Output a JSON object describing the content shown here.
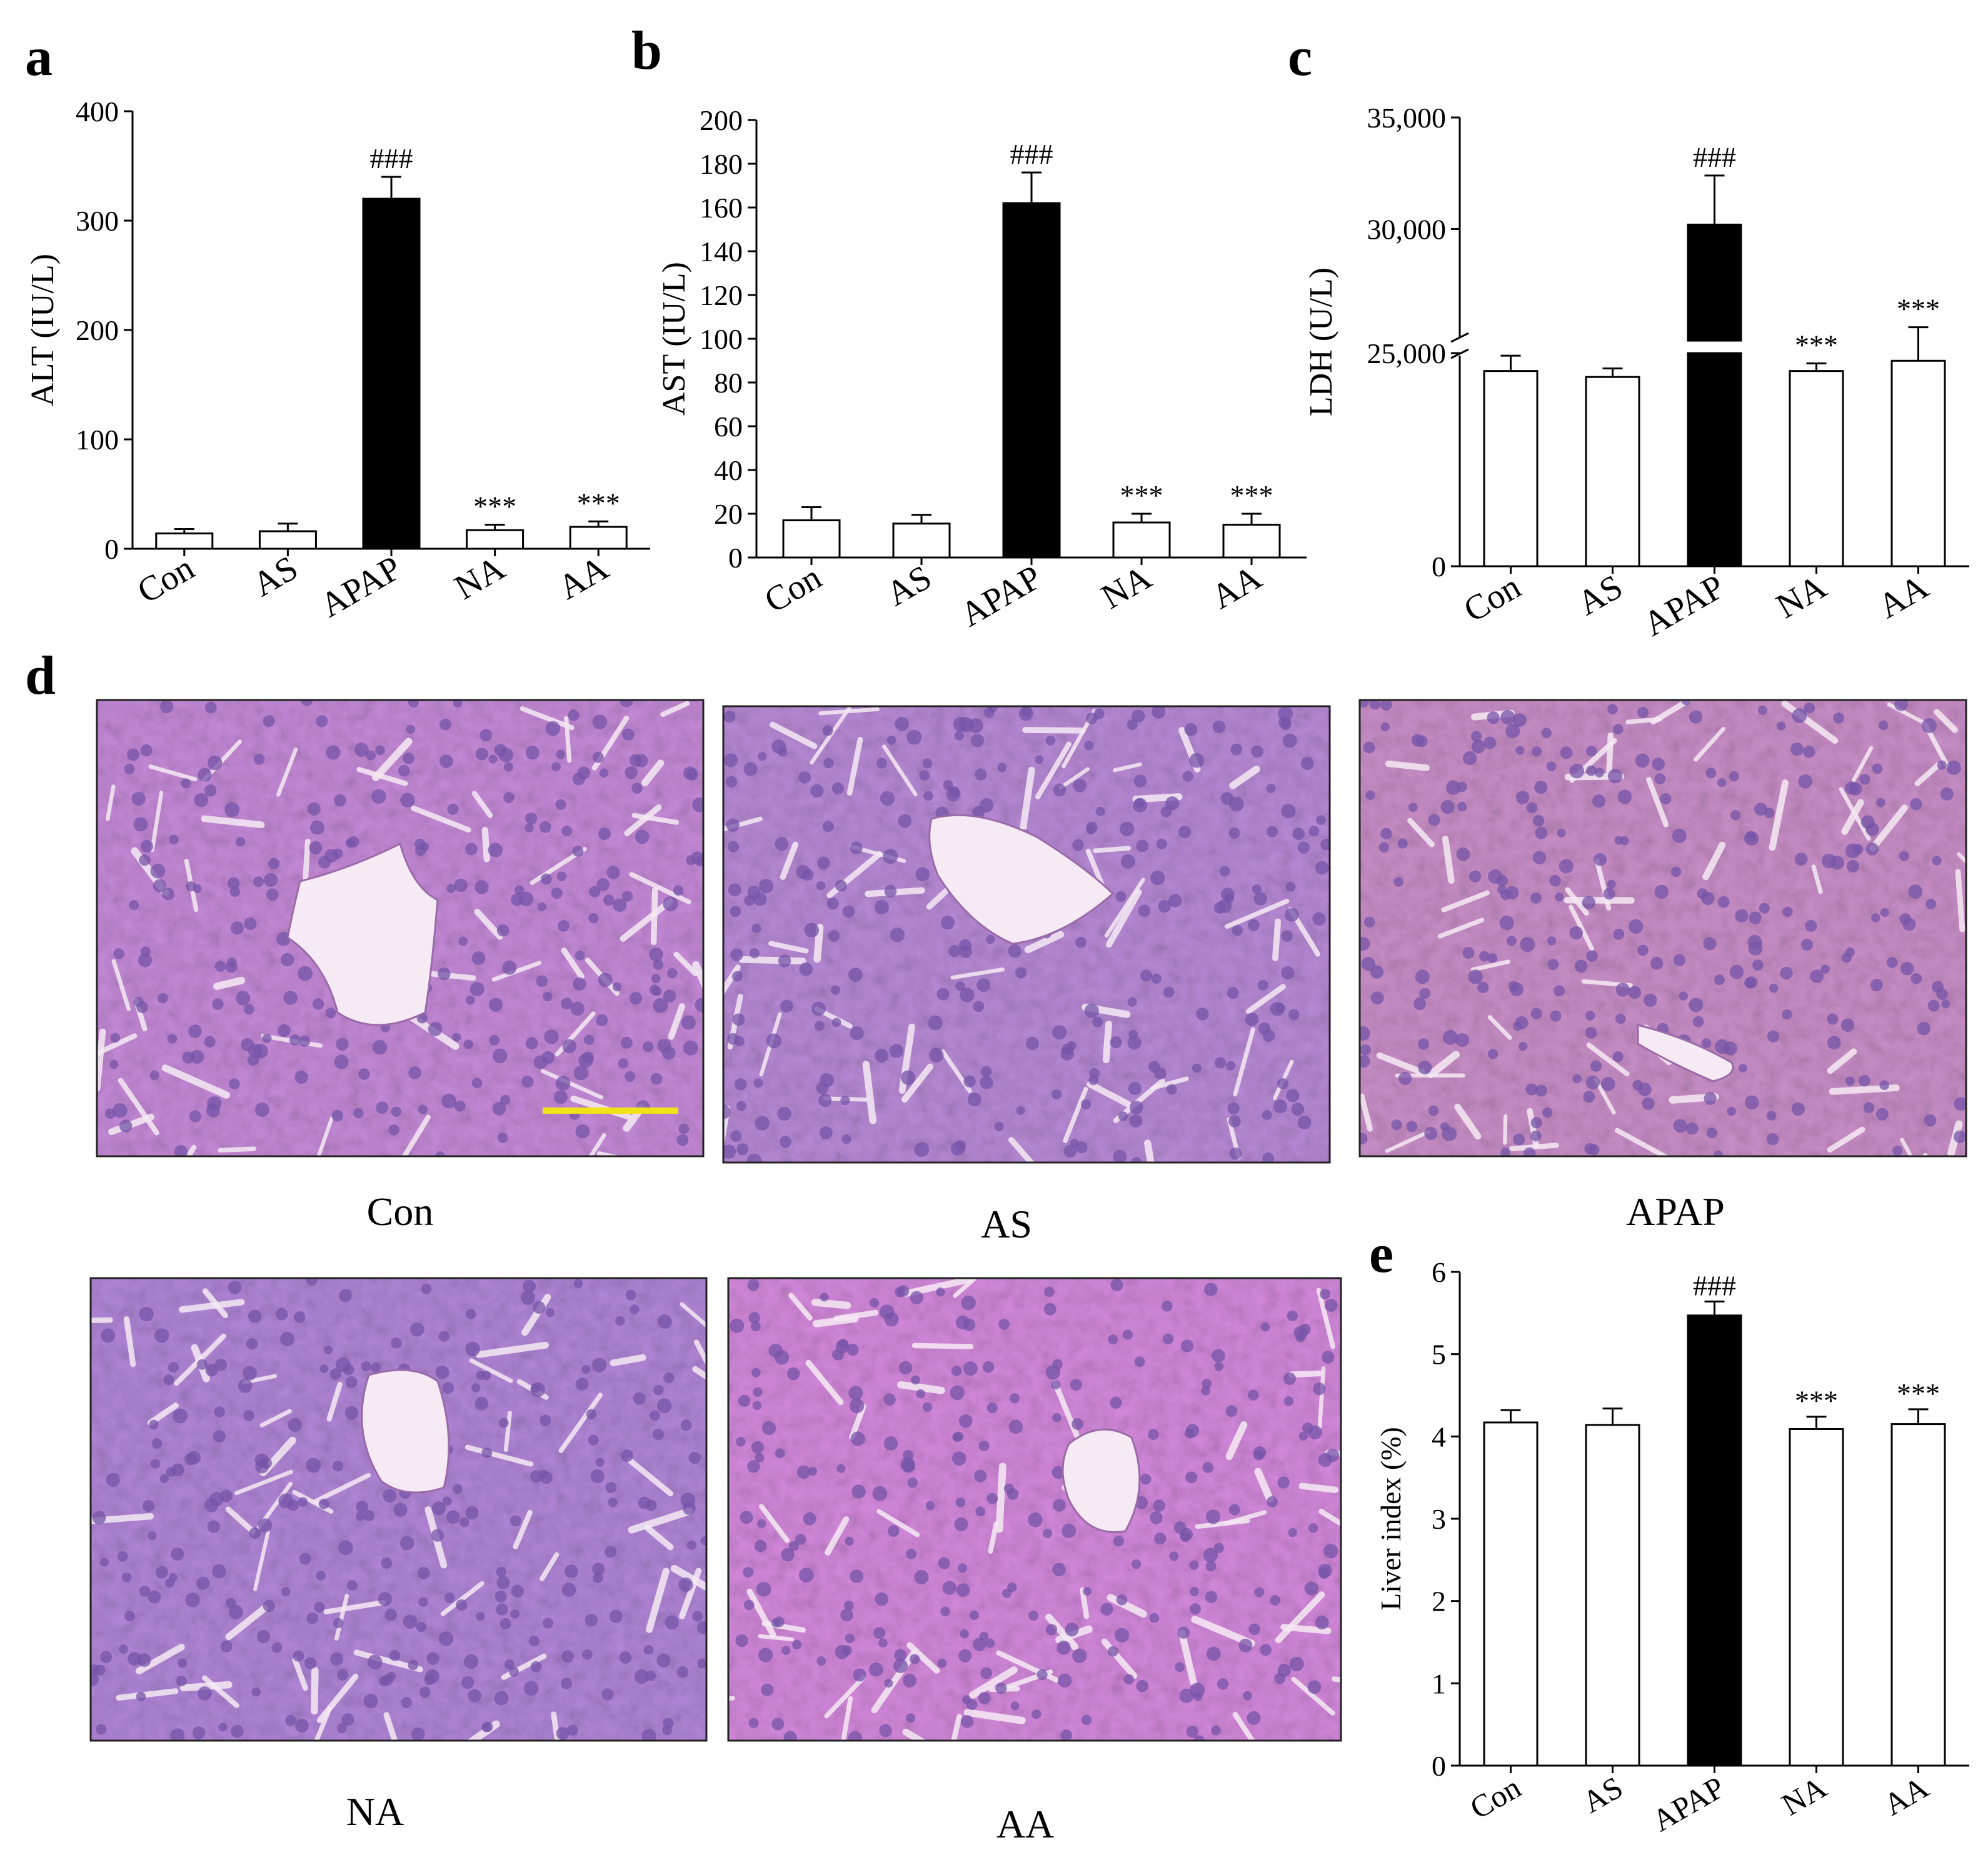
{
  "panels": {
    "a": "a",
    "b": "b",
    "c": "c",
    "d": "d",
    "e": "e"
  },
  "chart_data": [
    {
      "id": "a",
      "type": "bar",
      "ylabel": "ALT (IU/L)",
      "categories": [
        "Con",
        "AS",
        "APAP",
        "NA",
        "AA"
      ],
      "values": [
        14,
        16,
        320,
        17,
        20
      ],
      "errors": [
        4,
        7,
        20,
        5,
        5
      ],
      "significance": [
        "",
        "",
        "###",
        "***",
        "***"
      ],
      "fill": [
        "#ffffff",
        "#ffffff",
        "#000000",
        "#ffffff",
        "#ffffff"
      ],
      "ylim": [
        0,
        400
      ],
      "yticks": [
        0,
        100,
        200,
        300,
        400
      ],
      "ytick_labels": [
        "0",
        "100",
        "200",
        "300",
        "400"
      ]
    },
    {
      "id": "b",
      "type": "bar",
      "ylabel": "AST (IU/L)",
      "categories": [
        "Con",
        "AS",
        "APAP",
        "NA",
        "AA"
      ],
      "values": [
        17,
        15.5,
        162,
        16,
        15
      ],
      "errors": [
        6,
        4,
        14,
        4,
        5
      ],
      "significance": [
        "",
        "",
        "###",
        "***",
        "***"
      ],
      "fill": [
        "#ffffff",
        "#ffffff",
        "#000000",
        "#ffffff",
        "#ffffff"
      ],
      "ylim": [
        0,
        200
      ],
      "yticks": [
        0,
        20,
        40,
        60,
        80,
        100,
        120,
        140,
        160,
        180,
        200
      ],
      "ytick_labels": [
        "0",
        "20",
        "40",
        "60",
        "80",
        "100",
        "120",
        "140",
        "160",
        "180",
        "200"
      ]
    },
    {
      "id": "c",
      "type": "bar",
      "ylabel": "LDH (U/L)",
      "categories": [
        "Con",
        "AS",
        "APAP",
        "NA",
        "AA"
      ],
      "values": [
        22900,
        22200,
        30200,
        22900,
        24100
      ],
      "errors": [
        1800,
        1000,
        2200,
        900,
        1500
      ],
      "significance": [
        "",
        "",
        "###",
        "***",
        "***"
      ],
      "fill": [
        "#ffffff",
        "#ffffff",
        "#000000",
        "#ffffff",
        "#ffffff"
      ],
      "axis_break": [
        25000,
        25000
      ],
      "yticks": [
        0,
        25000,
        30000,
        35000
      ],
      "ytick_labels": [
        "0",
        "25,000",
        "30,000",
        "35,000"
      ]
    },
    {
      "id": "e",
      "type": "bar",
      "ylabel": "Liver index (%)",
      "categories": [
        "Con",
        "AS",
        "APAP",
        "NA",
        "AA"
      ],
      "values": [
        4.17,
        4.14,
        5.47,
        4.09,
        4.15
      ],
      "errors": [
        0.15,
        0.2,
        0.17,
        0.15,
        0.18
      ],
      "significance": [
        "",
        "",
        "###",
        "***",
        "***"
      ],
      "fill": [
        "#ffffff",
        "#ffffff",
        "#000000",
        "#ffffff",
        "#ffffff"
      ],
      "ylim": [
        0,
        6
      ],
      "yticks": [
        0,
        1,
        2,
        3,
        4,
        5,
        6
      ],
      "ytick_labels": [
        "0",
        "1",
        "2",
        "3",
        "4",
        "5",
        "6"
      ]
    }
  ],
  "micrographs": {
    "captions": [
      "Con",
      "AS",
      "APAP",
      "NA",
      "AA"
    ],
    "scale_bar_color": "#f2e21a",
    "tissue_colors": {
      "Con": "#c58ad8",
      "AS": "#b88ad6",
      "APAP": "#c98fc8",
      "NA": "#b286d8",
      "AA": "#d489dc"
    },
    "nucleus_color": "#7654a8",
    "lumen_color": "#f6eaf4"
  }
}
